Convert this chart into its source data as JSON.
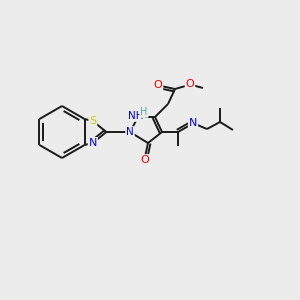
{
  "bg_color": "#ececec",
  "bond_color": "#1a1a1a",
  "atom_colors": {
    "N": "#0000ee",
    "O": "#ee0000",
    "S": "#cccc00",
    "H_color": "#55aaaa"
  },
  "figsize": [
    3.0,
    3.0
  ],
  "dpi": 100
}
